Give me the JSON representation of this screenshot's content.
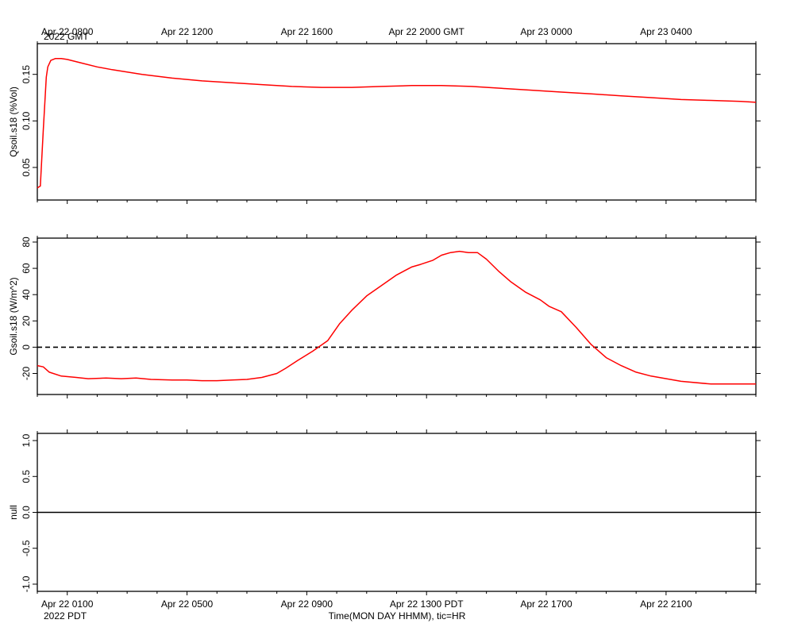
{
  "top_axis": {
    "ticks": [
      {
        "x": 0.5,
        "label": "Apr 22 0800"
      },
      {
        "x": 4.5,
        "label": "Apr 22 1200"
      },
      {
        "x": 8.5,
        "label": "Apr 22 1600"
      },
      {
        "x": 12.5,
        "label": "Apr 22 2000 GMT"
      },
      {
        "x": 16.5,
        "label": "Apr 23 0000"
      },
      {
        "x": 20.5,
        "label": "Apr 23 0400"
      }
    ],
    "year_label": "2022 GMT"
  },
  "bottom_axis": {
    "ticks": [
      {
        "x": 0.5,
        "label": "Apr 22 0100"
      },
      {
        "x": 4.5,
        "label": "Apr 22 0500"
      },
      {
        "x": 8.5,
        "label": "Apr 22 0900"
      },
      {
        "x": 12.5,
        "label": "Apr 22 1300 PDT"
      },
      {
        "x": 16.5,
        "label": "Apr 22 1700"
      },
      {
        "x": 20.5,
        "label": "Apr 22 2100"
      }
    ],
    "year_label": "2022 PDT",
    "xlabel": "Time(MON DAY HHMM), tic=HR"
  },
  "colors": {
    "series": "#ff0000",
    "axis": "#000000",
    "background": "#ffffff"
  },
  "chart_data": [
    {
      "type": "line",
      "ylabel": "Qsoil.s18 (%Vol)",
      "xlim": [
        -0.5,
        23.5
      ],
      "ylim": [
        0.015,
        0.183
      ],
      "yticks": [
        0.05,
        0.1,
        0.15
      ],
      "ytick_labels": [
        "0.05",
        "0.10",
        "0.15"
      ],
      "series": [
        {
          "x": [
            -0.5,
            -0.4,
            -0.3,
            -0.2,
            -0.15,
            -0.05,
            0.1,
            0.3,
            0.5,
            1.0,
            1.5,
            2.0,
            3.0,
            4.0,
            5.0,
            6.0,
            7.0,
            8.0,
            9.0,
            10.0,
            11.0,
            12.0,
            13.0,
            14.0,
            15.0,
            16.0,
            17.0,
            18.0,
            19.0,
            20.0,
            21.0,
            22.0,
            23.0,
            23.5
          ],
          "y": [
            0.028,
            0.03,
            0.09,
            0.147,
            0.158,
            0.165,
            0.167,
            0.167,
            0.166,
            0.162,
            0.158,
            0.155,
            0.15,
            0.146,
            0.143,
            0.141,
            0.139,
            0.137,
            0.136,
            0.136,
            0.137,
            0.138,
            0.138,
            0.137,
            0.135,
            0.133,
            0.131,
            0.129,
            0.127,
            0.125,
            0.123,
            0.122,
            0.121,
            0.12
          ]
        }
      ]
    },
    {
      "type": "line",
      "ylabel": "Gsoil.s18 (W/m^2)",
      "xlim": [
        -0.5,
        23.5
      ],
      "ylim": [
        -36,
        83
      ],
      "yticks": [
        -20,
        0,
        20,
        40,
        60,
        80
      ],
      "ytick_labels": [
        "-20",
        "0",
        "20",
        "40",
        "60",
        "80"
      ],
      "reference_line": {
        "y": 0,
        "style": "dashed"
      },
      "series": [
        {
          "x": [
            -0.5,
            -0.3,
            -0.1,
            0.3,
            0.8,
            1.2,
            1.8,
            2.3,
            2.8,
            3.3,
            4.0,
            4.5,
            5.0,
            5.5,
            6.0,
            6.5,
            7.0,
            7.5,
            7.8,
            8.2,
            8.7,
            9.2,
            9.6,
            10.0,
            10.5,
            11.0,
            11.5,
            12.0,
            12.3,
            12.7,
            13.0,
            13.3,
            13.6,
            13.9,
            14.2,
            14.5,
            14.9,
            15.3,
            15.8,
            16.3,
            16.6,
            17.0,
            17.5,
            18.0,
            18.5,
            19.0,
            19.5,
            20.0,
            21.0,
            22.0,
            23.0,
            23.5
          ],
          "y": [
            -14,
            -15,
            -19,
            -22,
            -23,
            -24,
            -23.5,
            -24,
            -23.5,
            -24.5,
            -25,
            -25,
            -25.5,
            -25.5,
            -25,
            -24.5,
            -23,
            -20,
            -16,
            -10,
            -3,
            5,
            18,
            28,
            39,
            47,
            55,
            61,
            63,
            66,
            70,
            72,
            73,
            72,
            72,
            67,
            58,
            50,
            42,
            36,
            31,
            27,
            15,
            2,
            -8,
            -14,
            -19,
            -22,
            -26,
            -28,
            -28,
            -28
          ]
        }
      ]
    },
    {
      "type": "line",
      "ylabel": "null",
      "xlim": [
        -0.5,
        23.5
      ],
      "ylim": [
        -1.1,
        1.1
      ],
      "yticks": [
        -1.0,
        -0.5,
        0.0,
        0.5,
        1.0
      ],
      "ytick_labels": [
        "-1.0",
        "-0.5",
        "0.0",
        "0.5",
        "1.0"
      ],
      "series": [
        {
          "x": [
            -0.5,
            23.5
          ],
          "y": [
            0,
            0
          ]
        }
      ]
    }
  ]
}
